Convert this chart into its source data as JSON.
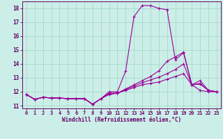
{
  "background_color": "#cceee8",
  "grid_color": "#aaddcc",
  "line_color": "#990099",
  "xlabel": "Windchill (Refroidissement éolien,°C)",
  "xlabel_color": "#660066",
  "tick_color": "#660066",
  "xlim": [
    -0.5,
    23.5
  ],
  "ylim": [
    10.8,
    18.5
  ],
  "yticks": [
    11,
    12,
    13,
    14,
    15,
    16,
    17,
    18
  ],
  "xticks": [
    0,
    1,
    2,
    3,
    4,
    5,
    6,
    7,
    8,
    9,
    10,
    11,
    12,
    13,
    14,
    15,
    16,
    17,
    18,
    19,
    20,
    21,
    22,
    23
  ],
  "series": [
    {
      "x": [
        0,
        1,
        2,
        3,
        4,
        5,
        6,
        7,
        8,
        9,
        10,
        11,
        12,
        13,
        14,
        15,
        16,
        17,
        18,
        19,
        20,
        21,
        22,
        23
      ],
      "y": [
        11.8,
        11.45,
        11.6,
        11.55,
        11.55,
        11.5,
        11.5,
        11.5,
        11.1,
        11.5,
        12.0,
        12.0,
        13.5,
        17.4,
        18.2,
        18.2,
        18.0,
        17.9,
        14.3,
        14.8,
        12.5,
        12.1,
        12.0,
        12.0
      ]
    },
    {
      "x": [
        0,
        1,
        2,
        3,
        4,
        5,
        6,
        7,
        8,
        9,
        10,
        11,
        12,
        13,
        14,
        15,
        16,
        17,
        18,
        19,
        20,
        21,
        22,
        23
      ],
      "y": [
        11.8,
        11.45,
        11.6,
        11.55,
        11.55,
        11.5,
        11.5,
        11.5,
        11.1,
        11.5,
        11.8,
        11.9,
        12.1,
        12.3,
        12.5,
        12.6,
        12.7,
        12.9,
        13.1,
        13.3,
        12.5,
        12.6,
        12.1,
        12.0
      ]
    },
    {
      "x": [
        0,
        1,
        2,
        3,
        4,
        5,
        6,
        7,
        8,
        9,
        10,
        11,
        12,
        13,
        14,
        15,
        16,
        17,
        18,
        19,
        20,
        21,
        22,
        23
      ],
      "y": [
        11.8,
        11.45,
        11.6,
        11.55,
        11.55,
        11.5,
        11.5,
        11.5,
        11.1,
        11.5,
        11.85,
        11.9,
        12.15,
        12.4,
        12.65,
        12.85,
        13.05,
        13.3,
        13.6,
        14.0,
        12.5,
        12.55,
        12.1,
        12.0
      ]
    },
    {
      "x": [
        0,
        1,
        2,
        3,
        4,
        5,
        6,
        7,
        8,
        9,
        10,
        11,
        12,
        13,
        14,
        15,
        16,
        17,
        18,
        19,
        20,
        21,
        22,
        23
      ],
      "y": [
        11.8,
        11.45,
        11.6,
        11.55,
        11.55,
        11.5,
        11.5,
        11.5,
        11.1,
        11.5,
        11.9,
        11.9,
        12.2,
        12.5,
        12.8,
        13.1,
        13.5,
        14.2,
        14.5,
        14.85,
        12.5,
        12.8,
        12.1,
        12.0
      ]
    }
  ]
}
